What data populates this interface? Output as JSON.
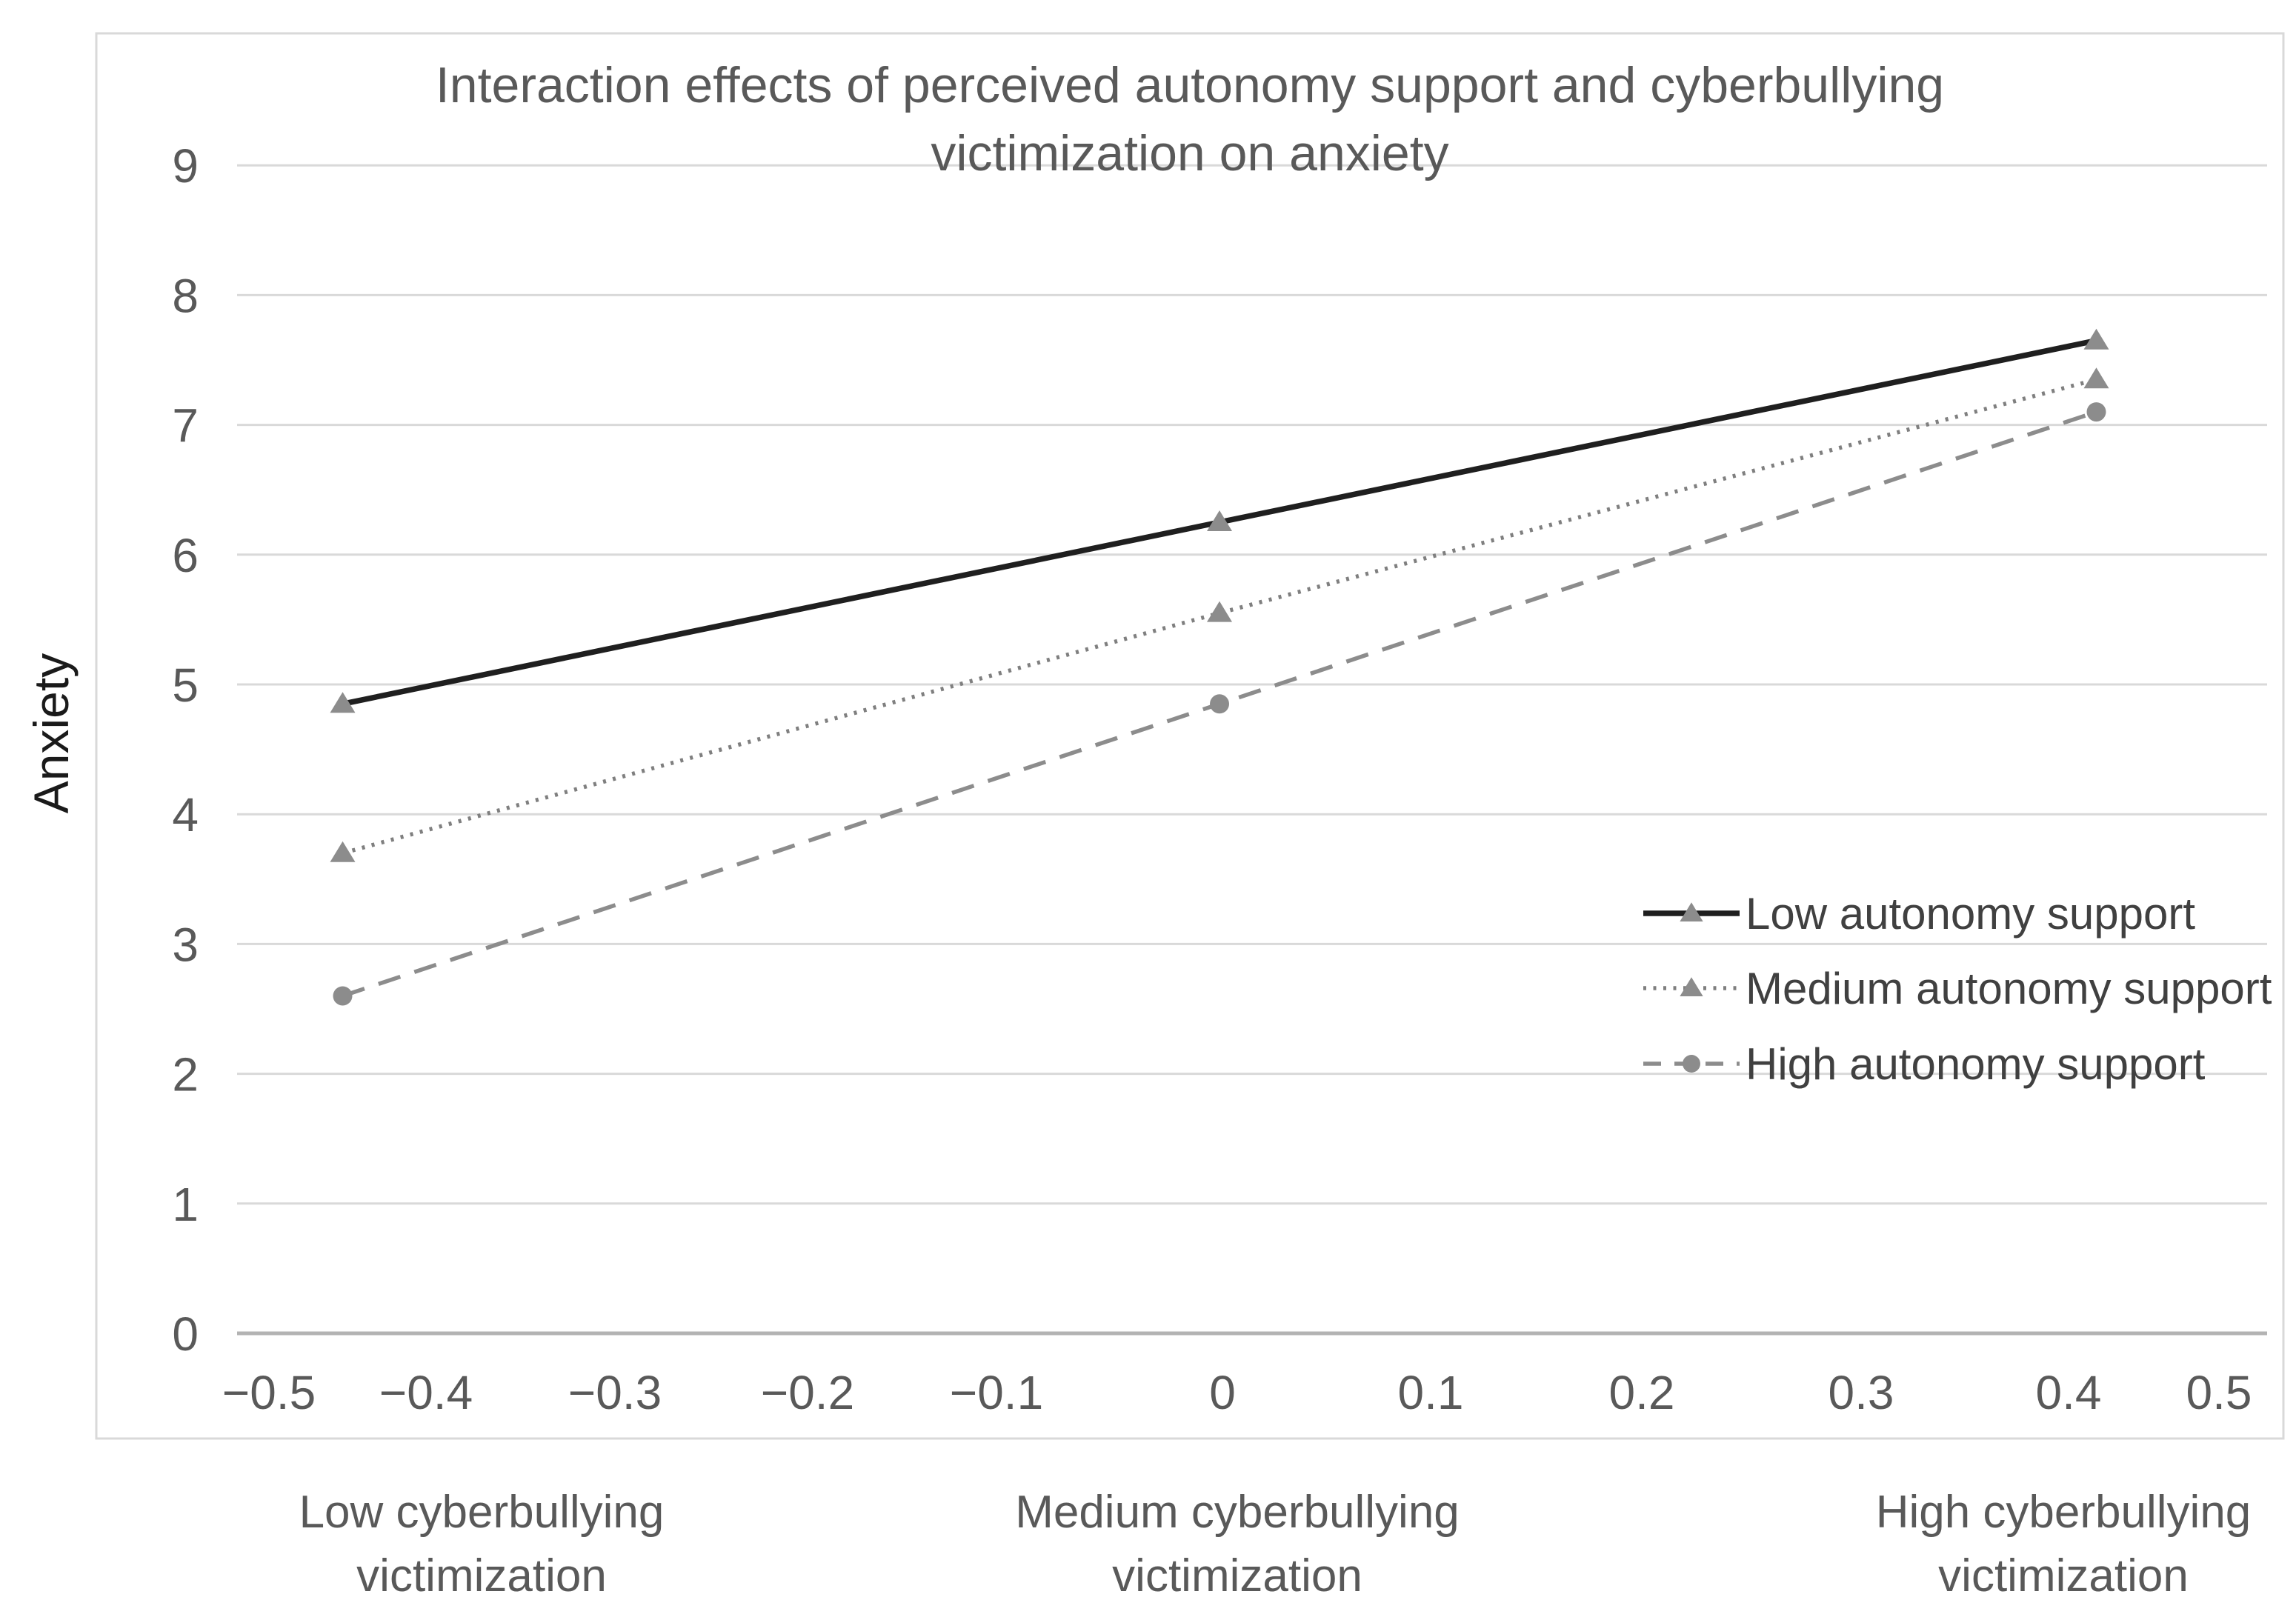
{
  "chart_data": {
    "type": "line",
    "title": "Interaction effects of perceived autonomy support and cyberbullying victimization on anxiety",
    "title_lines": [
      "Interaction effects of perceived autonomy support and cyberbullying",
      "victimization on anxiety"
    ],
    "ylabel": "Anxiety",
    "xlabel": "",
    "x": [
      -0.45,
      0,
      0.45
    ],
    "x_tick_labels": [
      "−0.5",
      "−0.4",
      "−0.3",
      "−0.2",
      "−0.1",
      "0",
      "0.1",
      "0.2",
      "0.3",
      "0.4",
      "0.5"
    ],
    "y_ticks": [
      "0",
      "1",
      "2",
      "3",
      "4",
      "5",
      "6",
      "7",
      "8",
      "9"
    ],
    "ylim": [
      0,
      9
    ],
    "xlim": [
      -0.5,
      0.5
    ],
    "grid": true,
    "legend_position": "inside-right",
    "x_category_labels": [
      "Low cyberbullying victimization",
      "Medium cyberbullying victimization",
      "High cyberbullying victimization"
    ],
    "series": [
      {
        "name": "Low autonomy support",
        "values": [
          4.85,
          6.25,
          7.65
        ],
        "line_style": "solid",
        "marker": "triangle",
        "color": "#1f1f1f"
      },
      {
        "name": "Medium autonomy support",
        "values": [
          3.7,
          5.55,
          7.35
        ],
        "line_style": "dotted",
        "marker": "triangle",
        "color": "#7f7f7f"
      },
      {
        "name": "High autonomy support",
        "values": [
          2.6,
          4.85,
          7.1
        ],
        "line_style": "dashed",
        "marker": "circle",
        "color": "#8c8c8c"
      }
    ],
    "colors": {
      "background": "#ffffff",
      "border": "#d9d9d9",
      "grid": "#d9d9d9",
      "axis": "#b3b3b3",
      "tick_text": "#595959",
      "title_text": "#595959",
      "legend_text": "#404040",
      "category_text": "#595959",
      "ylabel_text": "#1a1a1a",
      "marker_fill": "#8c8c8c"
    }
  }
}
